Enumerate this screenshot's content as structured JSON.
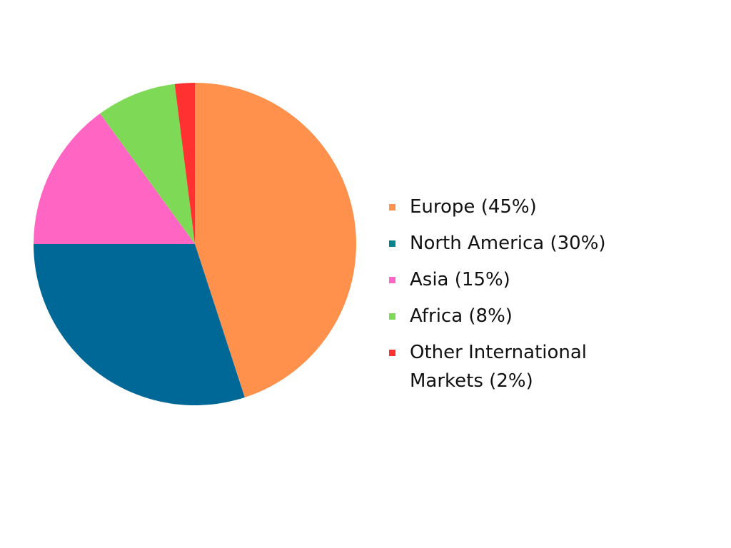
{
  "chart_data": {
    "type": "pie",
    "title": "",
    "slices": [
      {
        "label": "Europe (45%)",
        "value": 45,
        "color": "#FF914D"
      },
      {
        "label": "North America (30%)",
        "value": 30,
        "color": "#006896"
      },
      {
        "label": "Asia (15%)",
        "value": 15,
        "color": "#FF66C4"
      },
      {
        "label": "Africa (8%)",
        "value": 8,
        "color": "#7ED957"
      },
      {
        "label": "Other International Markets (2%)",
        "value": 2,
        "color": "#FF3131"
      }
    ],
    "legend": {
      "position": "right",
      "swatch_colors": [
        "#FF914D",
        "#00858F",
        "#FF66C4",
        "#7ED957",
        "#FF3131"
      ]
    },
    "start_angle": "top",
    "direction": "clockwise"
  }
}
